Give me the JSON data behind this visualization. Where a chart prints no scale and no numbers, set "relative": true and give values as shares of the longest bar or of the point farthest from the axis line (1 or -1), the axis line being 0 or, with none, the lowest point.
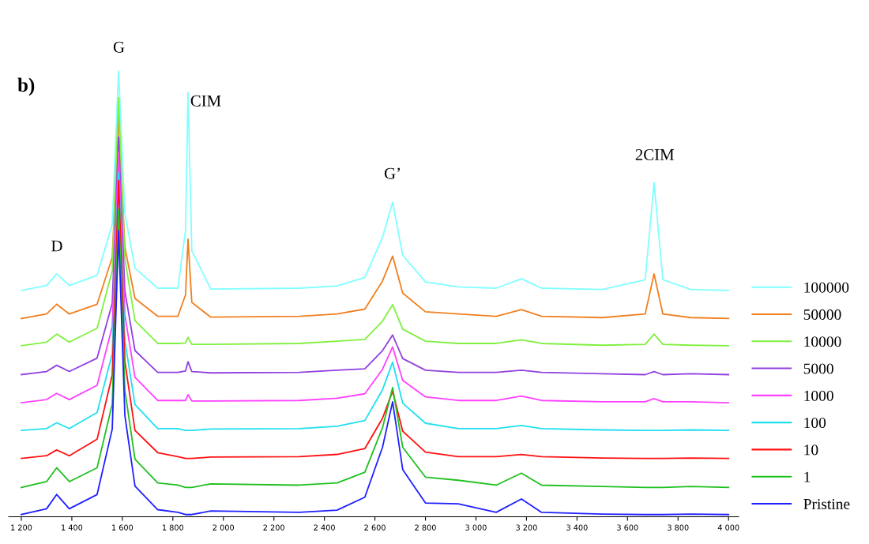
{
  "chart_data": {
    "type": "line",
    "relative": true,
    "x": [
      1200,
      1300,
      1340,
      1390,
      1500,
      1560,
      1585,
      1610,
      1650,
      1740,
      1820,
      1850,
      1860,
      1875,
      1950,
      2300,
      2450,
      2560,
      2630,
      2670,
      2710,
      2800,
      2930,
      3080,
      3180,
      3260,
      3500,
      3670,
      3705,
      3740,
      3850,
      4000
    ],
    "xlim": [
      1150,
      4040
    ],
    "xticks": [
      {
        "value": 1200,
        "label": "1 200"
      },
      {
        "value": 1400,
        "label": "1 400"
      },
      {
        "value": 1600,
        "label": "1 600"
      },
      {
        "value": 1800,
        "label": "1 800"
      },
      {
        "value": 2000,
        "label": "2 000"
      },
      {
        "value": 2200,
        "label": "2 200"
      },
      {
        "value": 2400,
        "label": "2 400"
      },
      {
        "value": 2600,
        "label": "2 600"
      },
      {
        "value": 2800,
        "label": "2 800"
      },
      {
        "value": 3000,
        "label": "3 000"
      },
      {
        "value": 3200,
        "label": "3 200"
      },
      {
        "value": 3400,
        "label": "3 400"
      },
      {
        "value": 3600,
        "label": "3 600"
      },
      {
        "value": 3800,
        "label": "3 800"
      },
      {
        "value": 4000,
        "label": "4 000"
      }
    ],
    "tick_labels": "x",
    "grid": false,
    "legend": "right",
    "series": [
      {
        "name": "100000",
        "color": "#80ffff",
        "values": [
          0.508,
          0.519,
          0.545,
          0.519,
          0.542,
          0.656,
          1,
          0.681,
          0.558,
          0.513,
          0.513,
          0.642,
          0.952,
          0.597,
          0.511,
          0.513,
          0.518,
          0.537,
          0.627,
          0.706,
          0.587,
          0.527,
          0.516,
          0.513,
          0.534,
          0.513,
          0.51,
          0.532,
          0.75,
          0.532,
          0.51,
          0.508
        ]
      },
      {
        "name": "50000",
        "color": "#f08020",
        "values": [
          0.445,
          0.455,
          0.477,
          0.455,
          0.477,
          0.582,
          0.9,
          0.605,
          0.49,
          0.45,
          0.45,
          0.498,
          0.623,
          0.481,
          0.448,
          0.45,
          0.455,
          0.466,
          0.529,
          0.585,
          0.502,
          0.46,
          0.455,
          0.45,
          0.465,
          0.45,
          0.447,
          0.455,
          0.545,
          0.455,
          0.447,
          0.445
        ]
      },
      {
        "name": "10000",
        "color": "#80f040",
        "values": [
          0.384,
          0.392,
          0.41,
          0.392,
          0.423,
          0.552,
          0.94,
          0.579,
          0.44,
          0.389,
          0.389,
          0.39,
          0.403,
          0.387,
          0.387,
          0.389,
          0.394,
          0.398,
          0.439,
          0.476,
          0.421,
          0.394,
          0.389,
          0.389,
          0.397,
          0.389,
          0.385,
          0.387,
          0.41,
          0.387,
          0.385,
          0.384
        ]
      },
      {
        "name": "5000",
        "color": "#9040e0",
        "values": [
          0.319,
          0.326,
          0.34,
          0.326,
          0.356,
          0.479,
          0.852,
          0.506,
          0.373,
          0.324,
          0.324,
          0.327,
          0.348,
          0.326,
          0.323,
          0.324,
          0.329,
          0.332,
          0.373,
          0.408,
          0.355,
          0.329,
          0.324,
          0.324,
          0.329,
          0.324,
          0.321,
          0.319,
          0.326,
          0.319,
          0.321,
          0.319
        ]
      },
      {
        "name": "1000",
        "color": "#ff40ff",
        "values": [
          0.256,
          0.263,
          0.277,
          0.263,
          0.295,
          0.426,
          0.819,
          0.453,
          0.313,
          0.261,
          0.261,
          0.261,
          0.274,
          0.26,
          0.26,
          0.261,
          0.266,
          0.276,
          0.331,
          0.381,
          0.306,
          0.269,
          0.261,
          0.261,
          0.271,
          0.261,
          0.258,
          0.258,
          0.265,
          0.258,
          0.258,
          0.256
        ]
      },
      {
        "name": "100",
        "color": "#20e0f0",
        "values": [
          0.194,
          0.198,
          0.211,
          0.198,
          0.234,
          0.366,
          0.771,
          0.395,
          0.252,
          0.198,
          0.198,
          0.194,
          0.194,
          0.194,
          0.197,
          0.198,
          0.203,
          0.216,
          0.285,
          0.347,
          0.255,
          0.21,
          0.198,
          0.198,
          0.205,
          0.198,
          0.195,
          0.194,
          0.194,
          0.194,
          0.195,
          0.194
        ]
      },
      {
        "name": "10",
        "color": "#ff1010",
        "values": [
          0.131,
          0.137,
          0.15,
          0.137,
          0.174,
          0.318,
          0.755,
          0.348,
          0.194,
          0.144,
          0.135,
          0.131,
          0.131,
          0.131,
          0.134,
          0.135,
          0.14,
          0.153,
          0.221,
          0.282,
          0.192,
          0.145,
          0.135,
          0.135,
          0.14,
          0.135,
          0.132,
          0.131,
          0.131,
          0.131,
          0.132,
          0.131
        ]
      },
      {
        "name": "1",
        "color": "#20c020",
        "values": [
          0.066,
          0.079,
          0.11,
          0.079,
          0.11,
          0.253,
          0.69,
          0.284,
          0.129,
          0.076,
          0.071,
          0.066,
          0.066,
          0.066,
          0.074,
          0.071,
          0.076,
          0.1,
          0.2,
          0.29,
          0.156,
          0.089,
          0.082,
          0.071,
          0.098,
          0.071,
          0.068,
          0.066,
          0.066,
          0.066,
          0.068,
          0.066
        ]
      },
      {
        "name": "Pristine",
        "color": "#2020ff",
        "values": [
          0.005,
          0.018,
          0.05,
          0.018,
          0.05,
          0.197,
          0.642,
          0.227,
          0.069,
          0.016,
          0.01,
          0.005,
          0.005,
          0.005,
          0.013,
          0.01,
          0.015,
          0.044,
          0.156,
          0.258,
          0.106,
          0.031,
          0.029,
          0.01,
          0.04,
          0.01,
          0.006,
          0.005,
          0.005,
          0.005,
          0.006,
          0.005
        ]
      }
    ],
    "annotations": [
      "b)",
      "D",
      "G",
      "CIM",
      "G’",
      "2CIM"
    ]
  }
}
